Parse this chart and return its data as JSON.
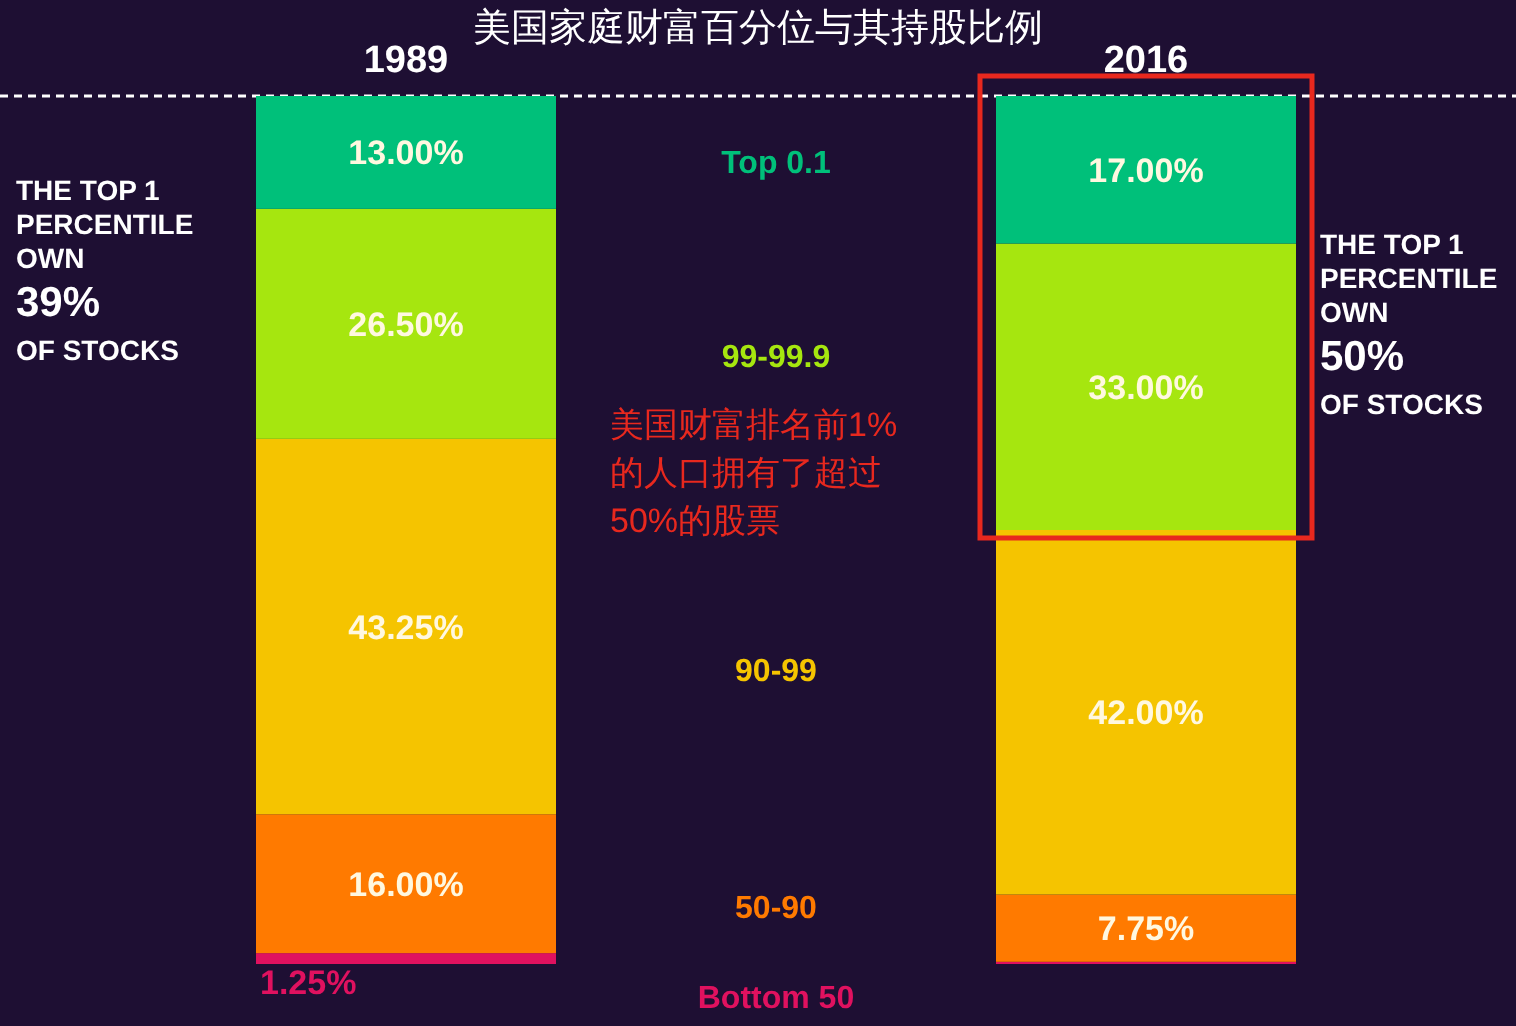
{
  "chart_data": {
    "type": "bar",
    "stacked": true,
    "title": "美国家庭财富百分位与其持股比例",
    "categories": [
      "1989",
      "2016"
    ],
    "series": [
      {
        "name": "Bottom 50",
        "color": "#e0115f",
        "values": [
          1.25,
          0.25
        ],
        "value_labels": [
          "1.25%",
          null
        ]
      },
      {
        "name": "50-90",
        "color": "#ff7a00",
        "values": [
          16.0,
          7.75
        ],
        "value_labels": [
          "16.00%",
          "7.75%"
        ]
      },
      {
        "name": "90-99",
        "color": "#f5c400",
        "values": [
          43.25,
          42.0
        ],
        "value_labels": [
          "43.25%",
          "42.00%"
        ]
      },
      {
        "name": "99-99.9",
        "color": "#a6e60f",
        "values": [
          26.5,
          33.0
        ],
        "value_labels": [
          "26.50%",
          "33.00%"
        ]
      },
      {
        "name": "Top 0.1",
        "color": "#00c07a",
        "values": [
          13.0,
          17.0
        ],
        "value_labels": [
          "13.00%",
          "17.00%"
        ]
      }
    ],
    "ylim": [
      0,
      100
    ],
    "tick_labels": "x",
    "ref_lines": [
      {
        "axis": "y",
        "value": 100,
        "label": null,
        "color": "#ffffff",
        "line_style": "dashed"
      }
    ],
    "annotations": [
      "THE TOP 1\nPERCENTILE\nOWN\n39%\nOF STOCKS",
      "THE TOP 1\nPERCENTILE\nOWN\n50%\nOF STOCKS",
      "美国财富排名前1%\n的人口拥有了超过\n50%的股票"
    ]
  }
}
